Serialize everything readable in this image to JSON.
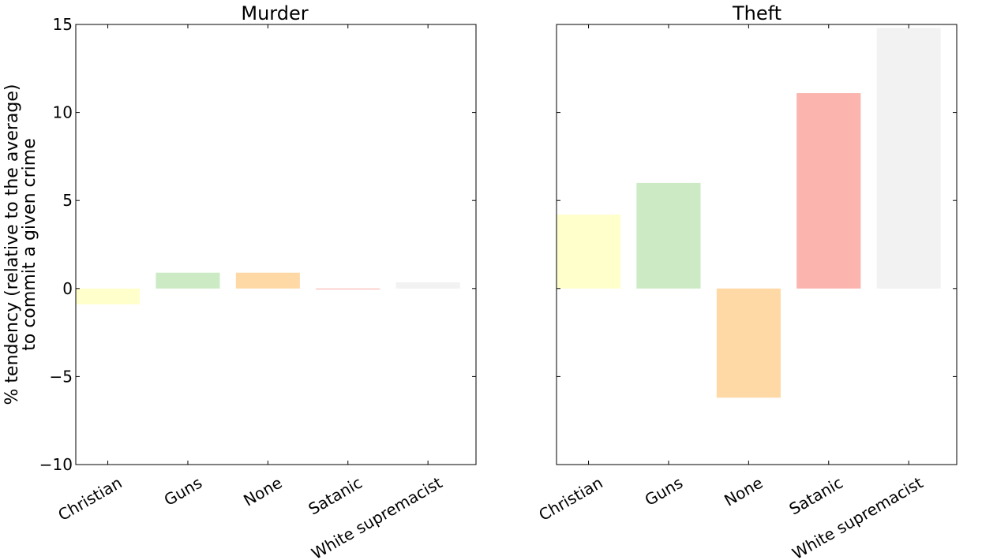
{
  "figure": {
    "ylabel_line1": "% tendency (relative to the average)",
    "ylabel_line2": "to commit a given crime"
  },
  "chart_data": [
    {
      "type": "bar",
      "title": "Murder",
      "categories": [
        "Christian",
        "Guns",
        "None",
        "Satanic",
        "White supremacist"
      ],
      "values": [
        -0.9,
        0.9,
        0.9,
        -0.05,
        0.35
      ],
      "colors": [
        "#ffffcc",
        "#ccebc5",
        "#fed9a6",
        "#fbb4ae",
        "#f2f2f2"
      ],
      "ylim": [
        -10,
        15
      ],
      "yticks": [
        15,
        10,
        5,
        0,
        -5,
        -10
      ],
      "ytick_labels": [
        "15",
        "10",
        "5",
        "0",
        "−5",
        "−10"
      ],
      "xlabel": "",
      "ylabel": "% tendency (relative to the average) to commit a given crime",
      "grid": false
    },
    {
      "type": "bar",
      "title": "Theft",
      "categories": [
        "Christian",
        "Guns",
        "None",
        "Satanic",
        "White supremacist"
      ],
      "values": [
        4.2,
        6.0,
        -6.2,
        11.1,
        14.8
      ],
      "colors": [
        "#ffffcc",
        "#ccebc5",
        "#fed9a6",
        "#fbb4ae",
        "#f2f2f2"
      ],
      "ylim": [
        -10,
        15
      ],
      "yticks": [
        15,
        10,
        5,
        0,
        -5,
        -10
      ],
      "ytick_labels": [],
      "xlabel": "",
      "ylabel": "",
      "grid": false
    }
  ]
}
